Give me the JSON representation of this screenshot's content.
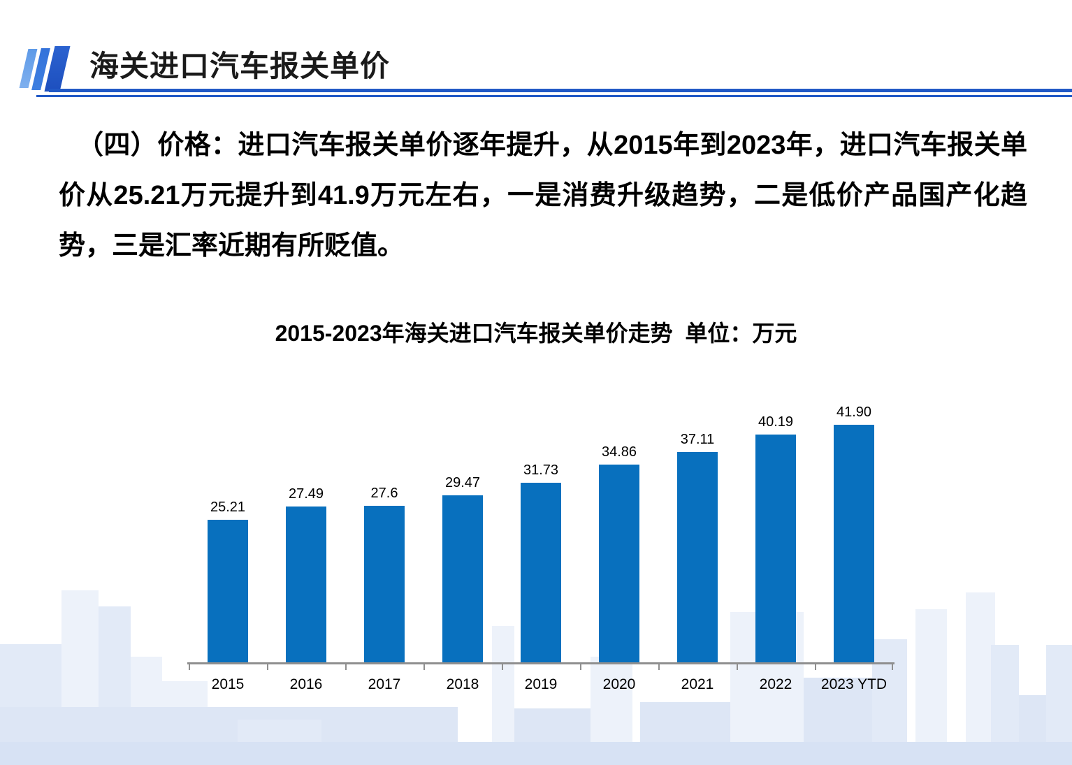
{
  "header": {
    "title": "海关进口汽车报关单价"
  },
  "body": {
    "paragraph": "（四）价格：进口汽车报关单价逐年提升，从2015年到2023年，进口汽车报关单价从25.21万元提升到41.9万元左右，一是消费升级趋势，二是低价产品国产化趋势，三是汇率近期有所贬值。"
  },
  "chart_data": {
    "type": "bar",
    "title": "2015-2023年海关进口汽车报关单价走势  单位：万元",
    "unit": "万元",
    "categories": [
      "2015",
      "2016",
      "2017",
      "2018",
      "2019",
      "2020",
      "2021",
      "2022",
      "2023 YTD"
    ],
    "values": [
      25.21,
      27.49,
      27.6,
      29.47,
      31.73,
      34.86,
      37.11,
      40.19,
      41.9
    ],
    "value_labels": [
      "25.21",
      "27.49",
      "27.6",
      "29.47",
      "31.73",
      "34.86",
      "37.11",
      "40.19",
      "41.90"
    ],
    "xlabel": "",
    "ylabel": "",
    "ylim": [
      0,
      45
    ],
    "grid": false,
    "legend": "none",
    "data_labels_position": "above-bars"
  },
  "colors": {
    "bar": "#0870BE",
    "axis": "#8F8F8F",
    "accent_line": "#2159C6",
    "slash_light": "#5E9AE8",
    "slash_mid": "#3372DA",
    "slash_dark": "#1D4FBE",
    "title_text": "#1A1A1A",
    "body_text": "#000000",
    "skyline_light": "#EDF2FA",
    "skyline_mid": "#E2EAF7",
    "skyline_band": "#DDE6F5",
    "skyline_strip": "#D7E2F4"
  }
}
